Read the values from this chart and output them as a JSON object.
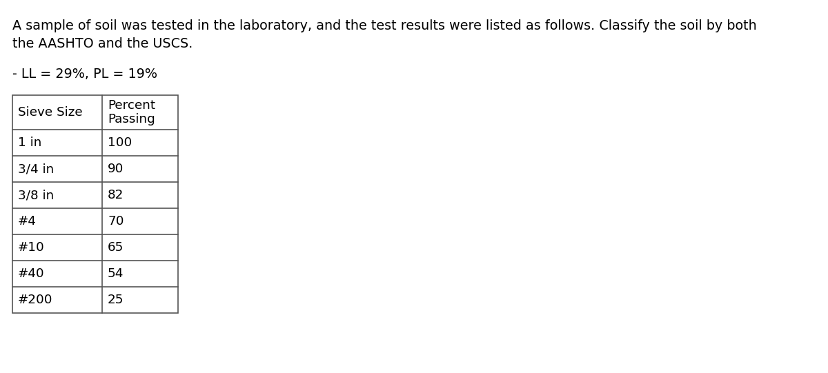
{
  "title": "A sample of soil was tested in the laboratory, and the test results were listed as follows. Classify the soil by both\nthe AASHTO and the USCS.",
  "subtitle": "- LL = 29%, PL = 19%",
  "table_headers": [
    "Sieve Size",
    "Percent\nPassing"
  ],
  "table_rows": [
    [
      "1 in",
      "100"
    ],
    [
      "3/4 in",
      "90"
    ],
    [
      "3/8 in",
      "82"
    ],
    [
      "#4",
      "70"
    ],
    [
      "#10",
      "65"
    ],
    [
      "#40",
      "54"
    ],
    [
      "#200",
      "25"
    ]
  ],
  "bg_color": "#ffffff",
  "text_color": "#000000",
  "table_line_color": "#555555",
  "title_fontsize": 13.8,
  "subtitle_fontsize": 13.8,
  "table_fontsize": 13.2,
  "fig_width": 12.0,
  "fig_height": 5.41,
  "dpi": 100
}
